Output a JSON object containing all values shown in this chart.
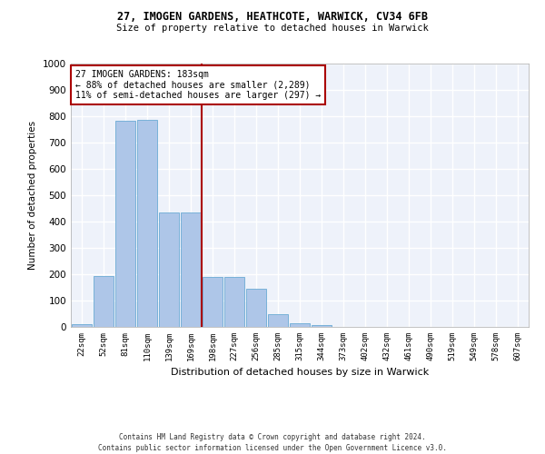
{
  "title1": "27, IMOGEN GARDENS, HEATHCOTE, WARWICK, CV34 6FB",
  "title2": "Size of property relative to detached houses in Warwick",
  "xlabel": "Distribution of detached houses by size in Warwick",
  "ylabel": "Number of detached properties",
  "bar_color": "#aec6e8",
  "bar_edge_color": "#6aaad4",
  "background_color": "#eef2fa",
  "grid_color": "#ffffff",
  "categories": [
    "22sqm",
    "52sqm",
    "81sqm",
    "110sqm",
    "139sqm",
    "169sqm",
    "198sqm",
    "227sqm",
    "256sqm",
    "285sqm",
    "315sqm",
    "344sqm",
    "373sqm",
    "402sqm",
    "432sqm",
    "461sqm",
    "490sqm",
    "519sqm",
    "549sqm",
    "578sqm",
    "607sqm"
  ],
  "values": [
    12,
    193,
    783,
    786,
    435,
    435,
    190,
    190,
    145,
    48,
    13,
    8,
    0,
    0,
    0,
    0,
    0,
    0,
    0,
    0,
    0
  ],
  "property_line_x": 6.0,
  "property_line_color": "#aa0000",
  "annotation_text": "27 IMOGEN GARDENS: 183sqm\n← 88% of detached houses are smaller (2,289)\n11% of semi-detached houses are larger (297) →",
  "annotation_box_color": "#ffffff",
  "annotation_box_edge": "#aa0000",
  "ylim": [
    0,
    1000
  ],
  "yticks": [
    0,
    100,
    200,
    300,
    400,
    500,
    600,
    700,
    800,
    900,
    1000
  ],
  "footer1": "Contains HM Land Registry data © Crown copyright and database right 2024.",
  "footer2": "Contains public sector information licensed under the Open Government Licence v3.0."
}
